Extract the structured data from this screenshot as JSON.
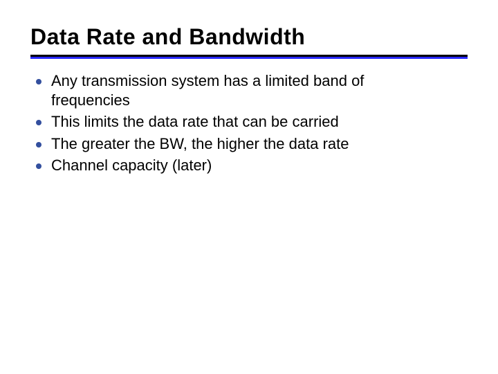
{
  "slide": {
    "title": "Data Rate and Bandwidth",
    "title_fontsize": 32,
    "title_color": "#000000",
    "rule": {
      "black_height": 3,
      "blue_height": 3,
      "blue_color": "#2929ff",
      "black_color": "#000000"
    },
    "bullets": {
      "dot_color": "#334f9e",
      "dot_diameter": 8,
      "text_fontsize": 22,
      "text_color": "#000000",
      "items": [
        "Any transmission system has a limited band of frequencies",
        "This limits the data rate that can be carried",
        "The greater the BW, the higher the data rate",
        "Channel capacity (later)"
      ]
    },
    "background_color": "#ffffff"
  }
}
